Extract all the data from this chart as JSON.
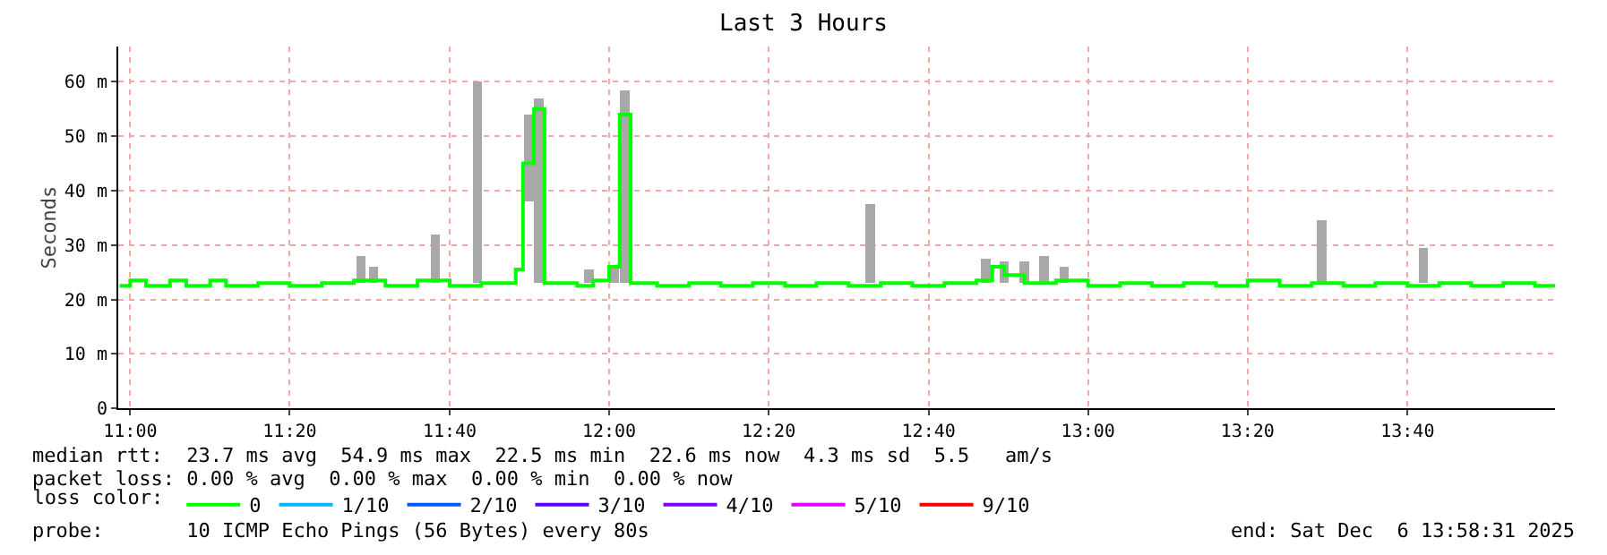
{
  "chart_data": {
    "type": "step",
    "title": "Last 3 Hours",
    "ylabel": "Seconds",
    "legend_title": "loss color:",
    "legend": "bottom",
    "grid": true,
    "marker": "none",
    "line_style": "solid",
    "xlim": [
      10.975,
      13.975
    ],
    "xticks": [
      {
        "value": 11,
        "label": "11:00"
      },
      {
        "value": 11.333,
        "label": "11:20"
      },
      {
        "value": 11.667,
        "label": "11:40"
      },
      {
        "value": 12,
        "label": "12:00"
      },
      {
        "value": 12.333,
        "label": "12:20"
      },
      {
        "value": 12.667,
        "label": "12:40"
      },
      {
        "value": 13,
        "label": "13:00"
      },
      {
        "value": 13.333,
        "label": "13:20"
      },
      {
        "value": 13.667,
        "label": "13:40"
      }
    ],
    "ylim": [
      0,
      66.5
    ],
    "yticks": [
      {
        "value": 0,
        "label": "0"
      },
      {
        "value": 10,
        "label": "10 m"
      },
      {
        "value": 20,
        "label": "20 m"
      },
      {
        "value": 30,
        "label": "30 m"
      },
      {
        "value": 40,
        "label": "40 m"
      },
      {
        "value": 50,
        "label": "50 m"
      },
      {
        "value": 60,
        "label": "60 m"
      }
    ],
    "series": [
      {
        "type": "bar",
        "color": "#a8a8a8",
        "x": [
          11.482,
          11.508,
          11.637,
          11.725,
          11.813,
          11.832,
          11.853,
          11.958,
          12.01,
          12.033,
          12.545,
          12.787,
          12.825,
          12.867,
          12.908,
          12.95,
          13.488,
          13.7
        ],
        "base": [
          23,
          23,
          23,
          23,
          null,
          38,
          23,
          23,
          23,
          23,
          23,
          23,
          23,
          23,
          23,
          23,
          23,
          23
        ],
        "values": [
          5,
          3,
          9,
          37,
          null,
          16,
          34,
          2.5,
          3,
          35.5,
          14.5,
          4.5,
          4,
          4,
          5,
          3,
          11.5,
          6.5
        ]
      },
      {
        "name": "0",
        "color": "#00ff00",
        "x": [
          10.978,
          11,
          11.033,
          11.083,
          11.117,
          11.167,
          11.2,
          11.267,
          11.333,
          11.4,
          11.467,
          11.533,
          11.6,
          11.667,
          11.733,
          11.805,
          11.82,
          11.843,
          11.865,
          11.933,
          11.967,
          12,
          12.022,
          12.045,
          12.1,
          12.167,
          12.233,
          12.3,
          12.367,
          12.433,
          12.5,
          12.567,
          12.633,
          12.7,
          12.767,
          12.8,
          12.825,
          12.867,
          12.933,
          13,
          13.067,
          13.133,
          13.2,
          13.267,
          13.333,
          13.4,
          13.467,
          13.533,
          13.6,
          13.667,
          13.733,
          13.8,
          13.867,
          13.933,
          13.975
        ],
        "values": [
          22.5,
          23.5,
          22.5,
          23.5,
          22.5,
          23.5,
          22.5,
          23,
          22.5,
          23,
          23.5,
          22.5,
          23.5,
          22.5,
          23,
          25.5,
          45,
          55,
          23,
          22.5,
          23.5,
          26,
          54,
          23,
          22.5,
          23,
          22.5,
          23,
          22.5,
          23,
          22.5,
          23,
          22.5,
          23,
          23.5,
          26,
          24.5,
          23,
          23.5,
          22.5,
          23,
          22.5,
          23,
          22.5,
          23.5,
          22.5,
          23,
          22.5,
          23,
          22.5,
          23,
          22.5,
          23,
          22.5,
          22.5
        ]
      },
      {
        "name": "1/10",
        "color": "#00b8ff",
        "values": [
          null
        ]
      },
      {
        "name": "2/10",
        "color": "#0059ff",
        "values": [
          null
        ]
      },
      {
        "name": "3/10",
        "color": "#5e00ff",
        "values": [
          null
        ]
      },
      {
        "name": "4/10",
        "color": "#7e00ff",
        "values": [
          null
        ]
      },
      {
        "name": "5/10",
        "color": "#dd00ff",
        "values": [
          null
        ]
      },
      {
        "name": "9/10",
        "color": "#ff0000",
        "values": [
          null
        ]
      }
    ],
    "annotations": [
      "median rtt:  23.7 ms avg  54.9 ms max  22.5 ms min  22.6 ms now  4.3 ms sd  5.5   am/s",
      "packet loss: 0.00 % avg  0.00 % max  0.00 % min  0.00 % now",
      "probe:       10 ICMP Echo Pings (56 Bytes) every 80s",
      "end: Sat Dec  6 13:58:31 2025"
    ]
  }
}
